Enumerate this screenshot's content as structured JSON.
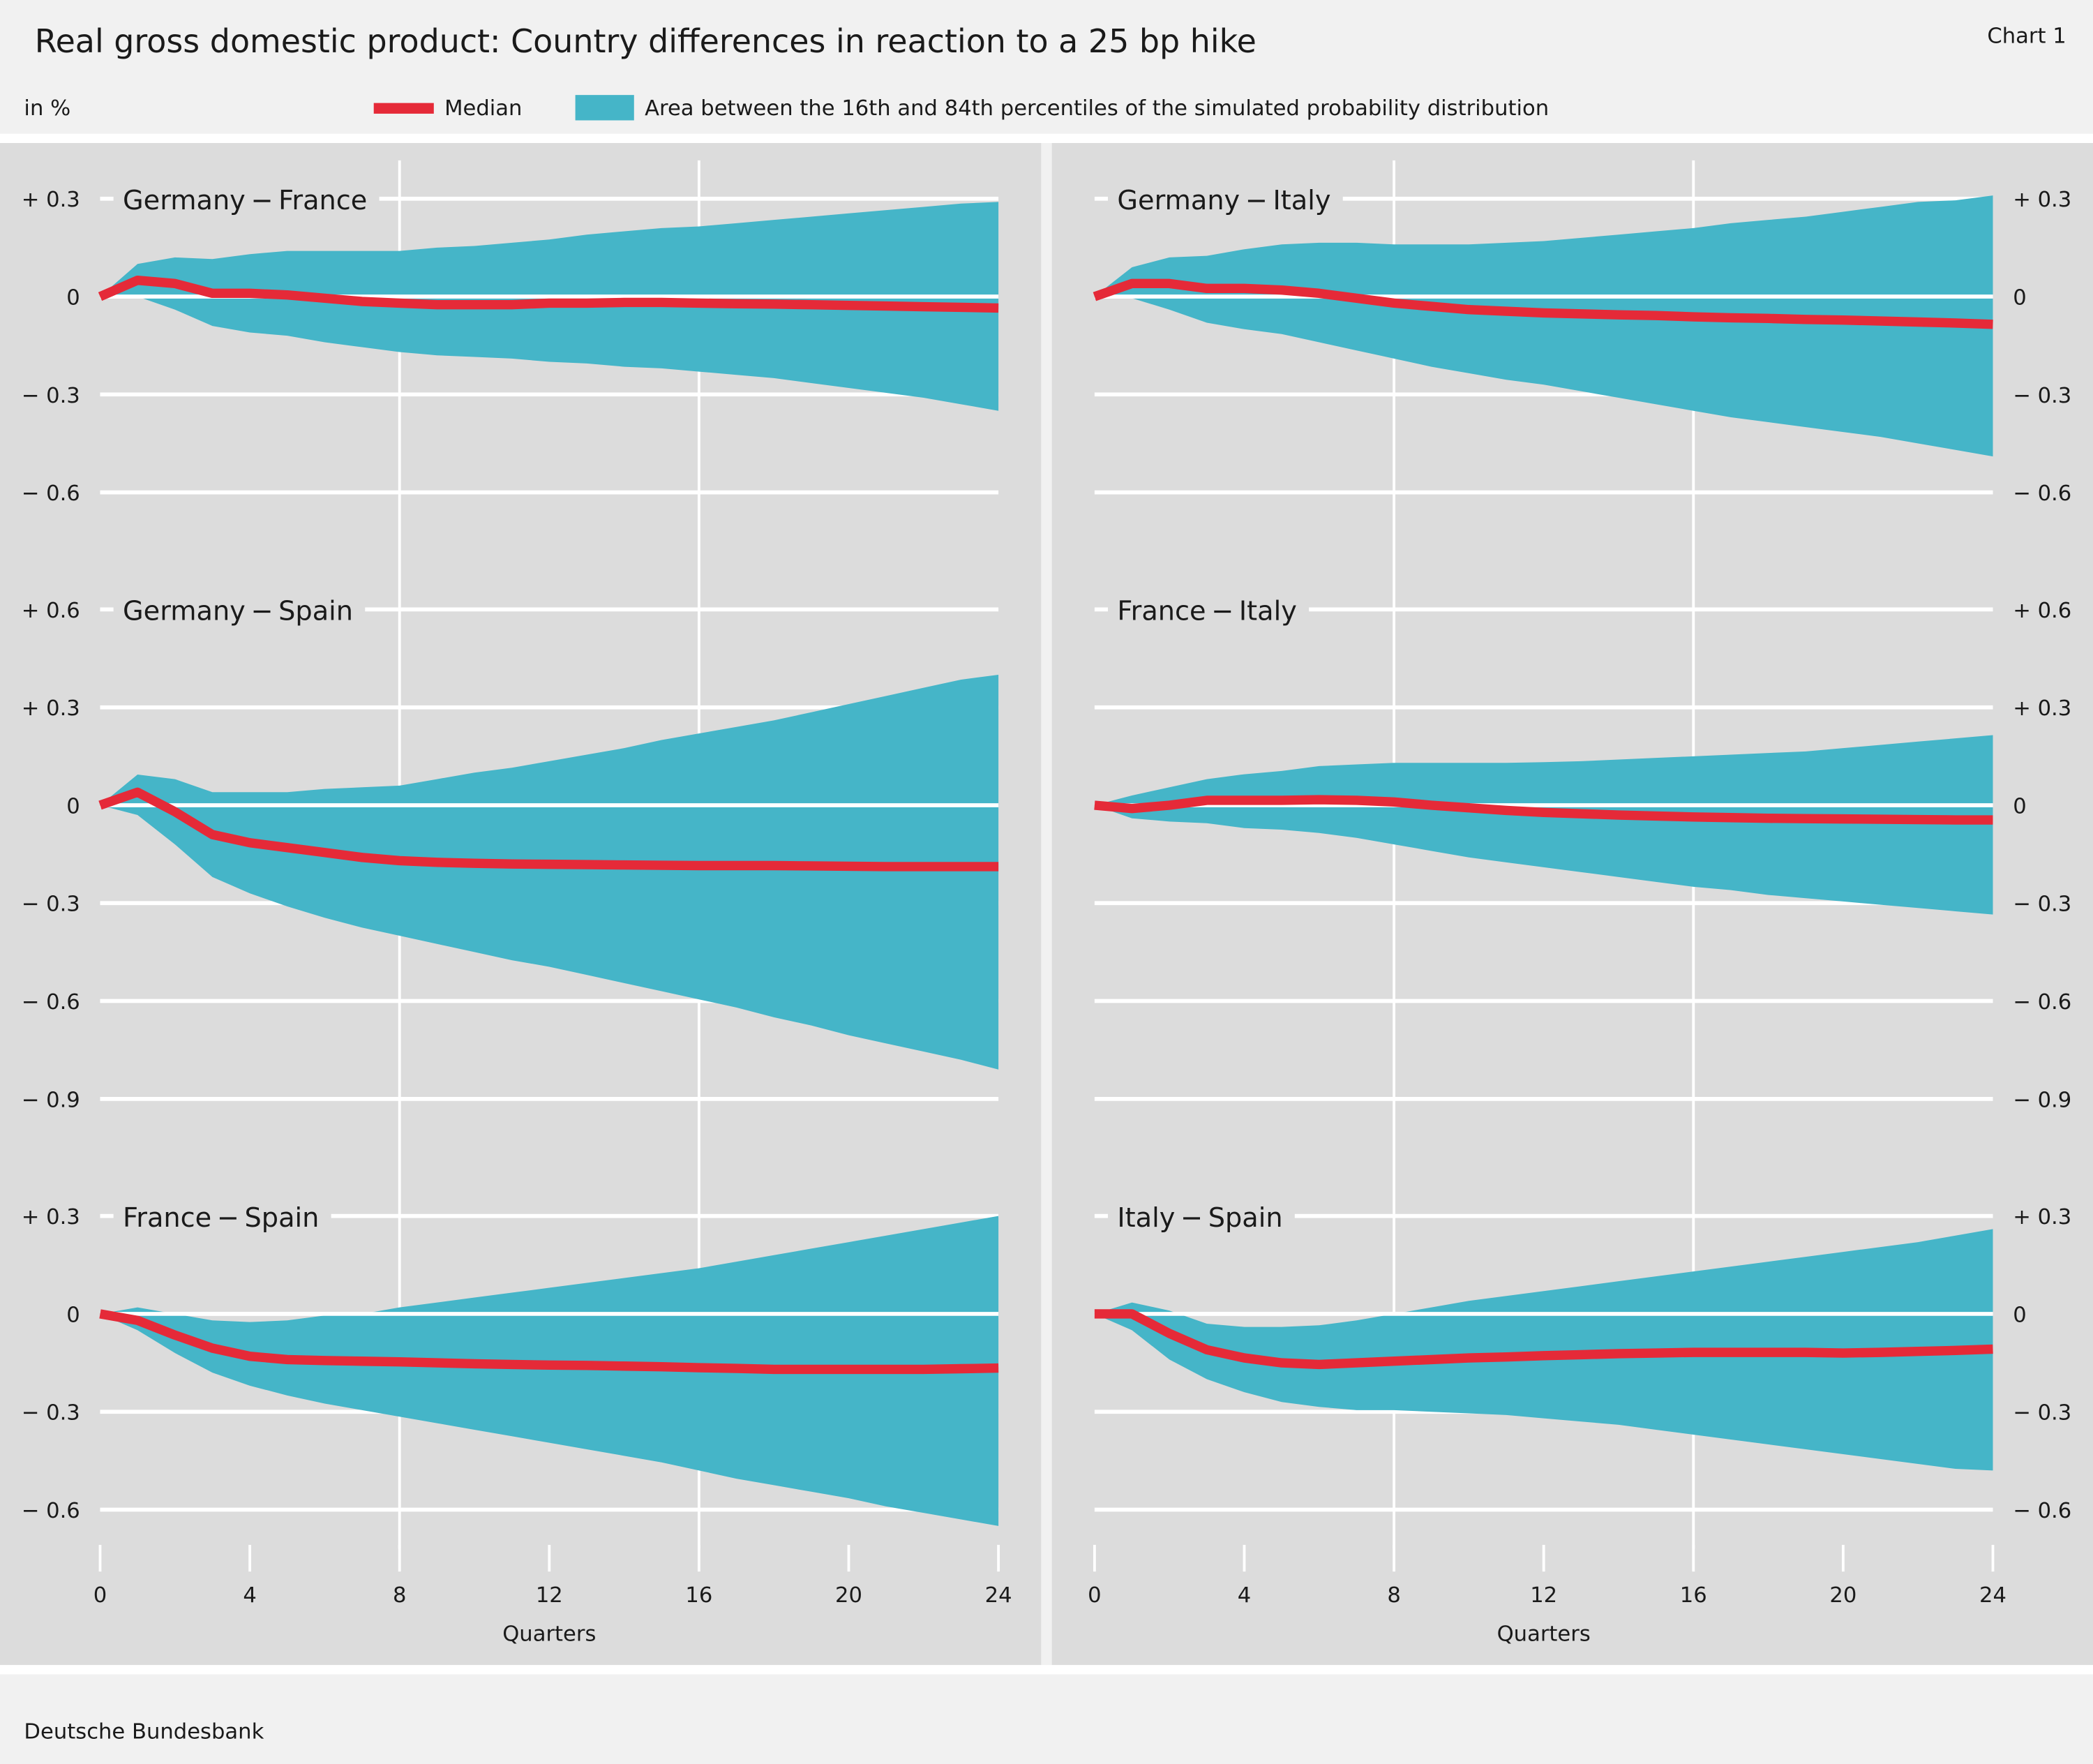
{
  "header": {
    "title": "Real gross domestic product: Country differences in reaction to a 25 bp hike",
    "chart_number": "Chart 1",
    "unit": "in %"
  },
  "legend": {
    "median_label": "Median",
    "band_label": "Area between the 16th and 84th percentiles of the simulated probability distribution"
  },
  "footer": {
    "source": "Deutsche Bundesbank"
  },
  "colors": {
    "median": "#e52a38",
    "band": "#45b5c8",
    "panel_bg": "#dcdcdc",
    "page_bg": "#f1f1f1",
    "grid": "#ffffff"
  },
  "chart_data": {
    "type": "area",
    "xlabel": "Quarters",
    "x_ticks": [
      0,
      4,
      8,
      12,
      16,
      20,
      24
    ],
    "xlim": [
      0,
      24
    ],
    "x_gridlines": [
      8,
      16
    ],
    "grid": true,
    "legend_placement": "top",
    "x": [
      0,
      1,
      2,
      3,
      4,
      5,
      6,
      7,
      8,
      9,
      10,
      11,
      12,
      13,
      14,
      15,
      16,
      17,
      18,
      19,
      20,
      21,
      22,
      23,
      24
    ],
    "panels": [
      {
        "title": "Germany − France",
        "column": "left",
        "row": 0,
        "y_ticks": [
          0.3,
          0,
          -0.3,
          -0.6
        ],
        "median": [
          0,
          0.05,
          0.04,
          0.01,
          0.01,
          0.005,
          -0.005,
          -0.015,
          -0.02,
          -0.025,
          -0.025,
          -0.025,
          -0.02,
          -0.02,
          -0.018,
          -0.018,
          -0.02,
          -0.022,
          -0.023,
          -0.025,
          -0.027,
          -0.029,
          -0.031,
          -0.033,
          -0.035
        ],
        "p84": [
          0,
          0.1,
          0.12,
          0.115,
          0.13,
          0.14,
          0.14,
          0.14,
          0.14,
          0.15,
          0.155,
          0.165,
          0.175,
          0.19,
          0.2,
          0.21,
          0.215,
          0.225,
          0.235,
          0.245,
          0.255,
          0.265,
          0.275,
          0.285,
          0.29
        ],
        "p16": [
          0,
          0,
          -0.04,
          -0.09,
          -0.11,
          -0.12,
          -0.14,
          -0.155,
          -0.17,
          -0.18,
          -0.185,
          -0.19,
          -0.2,
          -0.205,
          -0.215,
          -0.22,
          -0.23,
          -0.24,
          -0.25,
          -0.265,
          -0.28,
          -0.295,
          -0.31,
          -0.33,
          -0.35
        ]
      },
      {
        "title": "Germany − Italy",
        "column": "right",
        "row": 0,
        "y_ticks": [
          0.3,
          0,
          -0.3,
          -0.6
        ],
        "median": [
          0,
          0.04,
          0.04,
          0.025,
          0.025,
          0.02,
          0.01,
          -0.005,
          -0.02,
          -0.03,
          -0.04,
          -0.045,
          -0.05,
          -0.053,
          -0.056,
          -0.058,
          -0.062,
          -0.065,
          -0.067,
          -0.07,
          -0.072,
          -0.075,
          -0.078,
          -0.081,
          -0.085
        ],
        "p84": [
          0,
          0.09,
          0.12,
          0.125,
          0.145,
          0.16,
          0.165,
          0.165,
          0.16,
          0.16,
          0.16,
          0.165,
          0.17,
          0.18,
          0.19,
          0.2,
          0.21,
          0.225,
          0.235,
          0.245,
          0.26,
          0.275,
          0.29,
          0.295,
          0.31
        ],
        "p16": [
          0,
          -0.005,
          -0.04,
          -0.08,
          -0.1,
          -0.115,
          -0.14,
          -0.165,
          -0.19,
          -0.215,
          -0.235,
          -0.255,
          -0.27,
          -0.29,
          -0.31,
          -0.33,
          -0.35,
          -0.37,
          -0.385,
          -0.4,
          -0.415,
          -0.43,
          -0.45,
          -0.47,
          -0.49
        ]
      },
      {
        "title": "Germany − Spain",
        "column": "left",
        "row": 1,
        "y_ticks": [
          0.6,
          0.3,
          0,
          -0.3,
          -0.6,
          -0.9
        ],
        "median": [
          0,
          0.04,
          -0.02,
          -0.09,
          -0.115,
          -0.13,
          -0.145,
          -0.16,
          -0.17,
          -0.175,
          -0.178,
          -0.18,
          -0.181,
          -0.182,
          -0.183,
          -0.184,
          -0.185,
          -0.185,
          -0.185,
          -0.186,
          -0.187,
          -0.188,
          -0.188,
          -0.188,
          -0.188
        ],
        "p84": [
          0,
          0.094,
          0.08,
          0.04,
          0.04,
          0.04,
          0.05,
          0.055,
          0.06,
          0.08,
          0.1,
          0.115,
          0.135,
          0.155,
          0.175,
          0.2,
          0.22,
          0.24,
          0.26,
          0.285,
          0.31,
          0.335,
          0.36,
          0.385,
          0.4
        ],
        "p16": [
          0,
          -0.03,
          -0.12,
          -0.22,
          -0.27,
          -0.31,
          -0.345,
          -0.375,
          -0.4,
          -0.425,
          -0.45,
          -0.475,
          -0.495,
          -0.52,
          -0.545,
          -0.57,
          -0.595,
          -0.62,
          -0.65,
          -0.675,
          -0.705,
          -0.73,
          -0.755,
          -0.78,
          -0.81
        ]
      },
      {
        "title": "France − Italy",
        "column": "right",
        "row": 1,
        "y_ticks": [
          0.6,
          0.3,
          0,
          -0.3,
          -0.6,
          -0.9
        ],
        "median": [
          0,
          -0.01,
          0,
          0.015,
          0.015,
          0.015,
          0.017,
          0.015,
          0.01,
          0,
          -0.008,
          -0.016,
          -0.022,
          -0.026,
          -0.03,
          -0.033,
          -0.036,
          -0.038,
          -0.04,
          -0.041,
          -0.042,
          -0.043,
          -0.044,
          -0.045,
          -0.045
        ],
        "p84": [
          0,
          0.03,
          0.055,
          0.08,
          0.095,
          0.105,
          0.12,
          0.125,
          0.13,
          0.13,
          0.13,
          0.13,
          0.132,
          0.135,
          0.14,
          0.145,
          0.15,
          0.155,
          0.16,
          0.165,
          0.175,
          0.185,
          0.195,
          0.205,
          0.215
        ],
        "p16": [
          0,
          -0.04,
          -0.05,
          -0.055,
          -0.07,
          -0.075,
          -0.085,
          -0.1,
          -0.12,
          -0.14,
          -0.16,
          -0.175,
          -0.19,
          -0.205,
          -0.22,
          -0.235,
          -0.25,
          -0.26,
          -0.275,
          -0.285,
          -0.295,
          -0.305,
          -0.315,
          -0.325,
          -0.335
        ]
      },
      {
        "title": "France − Spain",
        "column": "left",
        "row": 2,
        "y_ticks": [
          0.3,
          0,
          -0.3,
          -0.6
        ],
        "median": [
          0,
          -0.02,
          -0.065,
          -0.105,
          -0.13,
          -0.14,
          -0.143,
          -0.145,
          -0.147,
          -0.15,
          -0.153,
          -0.155,
          -0.157,
          -0.158,
          -0.16,
          -0.162,
          -0.165,
          -0.167,
          -0.17,
          -0.17,
          -0.17,
          -0.17,
          -0.17,
          -0.168,
          -0.166
        ],
        "p84": [
          0,
          0.02,
          0,
          -0.02,
          -0.025,
          -0.02,
          -0.005,
          0,
          0.02,
          0.035,
          0.05,
          0.065,
          0.08,
          0.095,
          0.11,
          0.125,
          0.14,
          0.16,
          0.18,
          0.2,
          0.22,
          0.24,
          0.26,
          0.28,
          0.3
        ],
        "p16": [
          0,
          -0.05,
          -0.12,
          -0.18,
          -0.22,
          -0.25,
          -0.275,
          -0.295,
          -0.315,
          -0.335,
          -0.355,
          -0.375,
          -0.395,
          -0.415,
          -0.435,
          -0.455,
          -0.48,
          -0.505,
          -0.525,
          -0.545,
          -0.565,
          -0.59,
          -0.61,
          -0.63,
          -0.65
        ]
      },
      {
        "title": "Italy − Spain",
        "column": "right",
        "row": 2,
        "y_ticks": [
          0.3,
          0,
          -0.3,
          -0.6
        ],
        "median": [
          0,
          0,
          -0.06,
          -0.11,
          -0.135,
          -0.15,
          -0.155,
          -0.15,
          -0.145,
          -0.14,
          -0.135,
          -0.132,
          -0.128,
          -0.125,
          -0.122,
          -0.12,
          -0.118,
          -0.118,
          -0.118,
          -0.118,
          -0.12,
          -0.118,
          -0.115,
          -0.112,
          -0.108
        ],
        "p84": [
          0,
          0.035,
          0.01,
          -0.03,
          -0.04,
          -0.04,
          -0.035,
          -0.02,
          0,
          0.02,
          0.04,
          0.055,
          0.07,
          0.085,
          0.1,
          0.115,
          0.13,
          0.145,
          0.16,
          0.175,
          0.19,
          0.205,
          0.22,
          0.24,
          0.26
        ],
        "p16": [
          0,
          -0.05,
          -0.14,
          -0.2,
          -0.24,
          -0.27,
          -0.285,
          -0.295,
          -0.295,
          -0.3,
          -0.305,
          -0.31,
          -0.32,
          -0.33,
          -0.34,
          -0.355,
          -0.37,
          -0.385,
          -0.4,
          -0.415,
          -0.43,
          -0.445,
          -0.46,
          -0.475,
          -0.48
        ]
      }
    ]
  }
}
